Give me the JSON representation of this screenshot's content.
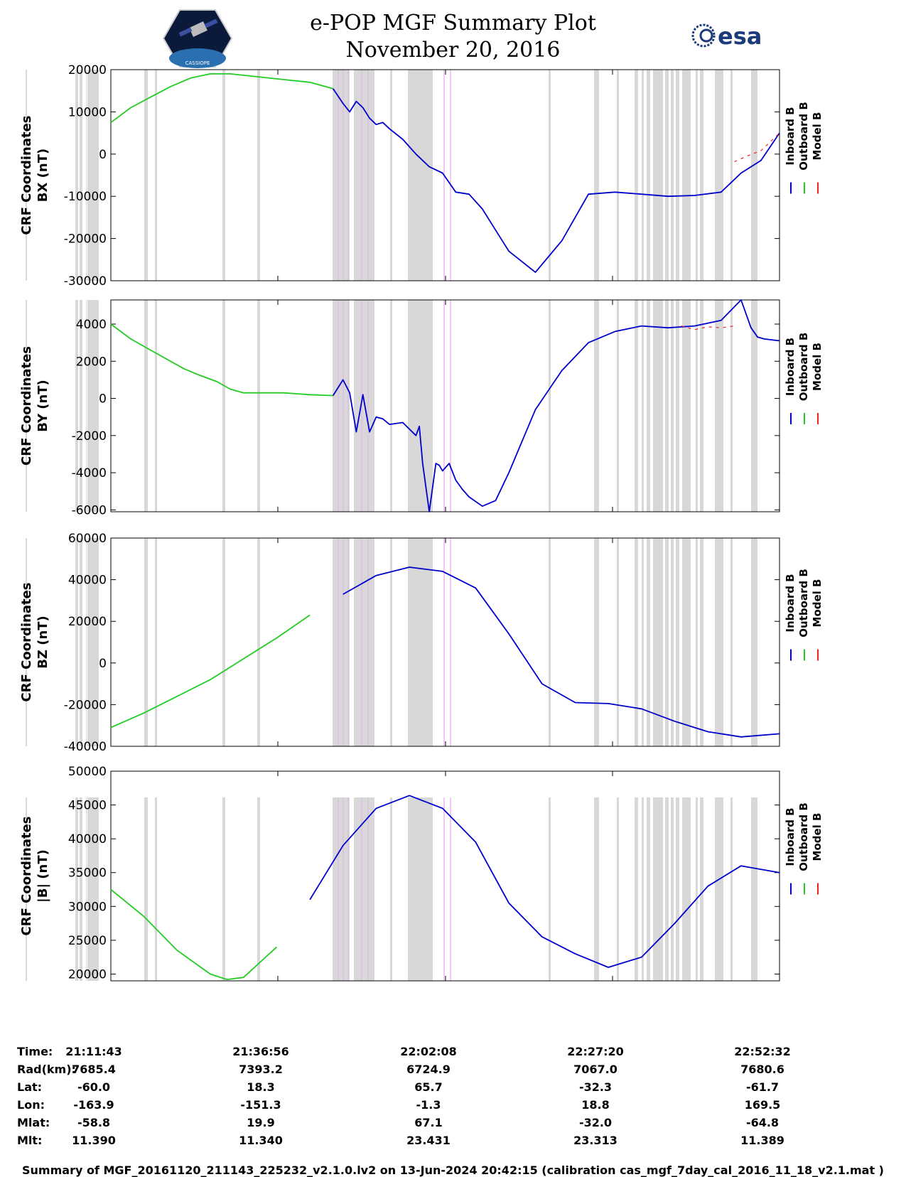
{
  "header": {
    "title": "e-POP MGF Summary Plot",
    "date": "November 20, 2016",
    "logo_left_text": "CASSIOPE",
    "logo_right_text": "esa"
  },
  "colors": {
    "inboard": "#0000cc",
    "outboard": "#22cc22",
    "model": "#ee2222",
    "shade": "#d8d8d8",
    "marker": "#e5a8f0"
  },
  "legend": [
    "Inboard B",
    "Outboard B",
    "Model B"
  ],
  "x_ticks": [
    "21:11:43",
    "21:36:56",
    "22:02:08",
    "22:27:20",
    "22:52:32"
  ],
  "chart_data": [
    {
      "type": "line",
      "ylabel_line1": "CRF Coordinates",
      "ylabel_line2": "BX (nT)",
      "ylim": [
        -30000,
        20000
      ],
      "yticks": [
        20000,
        10000,
        0,
        -10000,
        -20000,
        -30000
      ],
      "x_minutes_range": [
        0,
        100.8
      ],
      "switch_minute": 33.5,
      "series": [
        {
          "name": "Inboard B / Outboard B",
          "x": [
            0,
            3,
            6,
            9,
            12,
            15,
            18,
            21,
            24,
            27,
            30,
            33.5,
            35,
            36,
            37,
            38,
            39,
            40,
            41,
            42,
            44,
            46,
            48,
            50,
            52,
            54,
            56,
            58,
            60,
            64,
            68,
            72,
            76,
            80,
            84,
            88,
            92,
            95,
            98,
            100.8
          ],
          "y": [
            7500,
            11000,
            13500,
            16000,
            18000,
            19000,
            19000,
            18500,
            18000,
            17500,
            17000,
            15500,
            12000,
            10000,
            12500,
            11000,
            8500,
            7000,
            7500,
            6000,
            3500,
            0,
            -3000,
            -4500,
            -9000,
            -9500,
            -13000,
            -18000,
            -23000,
            -28000,
            -20500,
            -9500,
            -9000,
            -9500,
            -10000,
            -9800,
            -9000,
            -4500,
            -1500,
            5000
          ]
        },
        {
          "name": "Model B",
          "x": [
            94,
            96,
            98,
            100.8
          ],
          "y": [
            -1800,
            -400,
            800,
            5000
          ]
        }
      ]
    },
    {
      "type": "line",
      "ylabel_line1": "CRF Coordinates",
      "ylabel_line2": "BY (nT)",
      "ylim": [
        -6100,
        5300
      ],
      "yticks": [
        4000,
        2000,
        0,
        -2000,
        -4000,
        -6000
      ],
      "x_minutes_range": [
        0,
        100.8
      ],
      "switch_minute": 33.5,
      "series": [
        {
          "name": "Inboard B / Outboard B",
          "x": [
            0,
            3,
            6,
            9,
            11,
            13,
            16,
            18,
            20,
            22,
            24,
            26,
            28,
            30,
            33.5,
            35,
            36,
            37,
            38,
            39,
            40,
            41,
            42,
            44,
            46,
            46.5,
            47,
            48,
            49,
            49.5,
            50,
            51,
            52,
            53,
            54,
            56,
            58,
            60,
            64,
            68,
            72,
            76,
            80,
            84,
            88,
            92,
            95,
            96.5,
            97.5,
            98.5,
            100.8
          ],
          "y": [
            4000,
            3200,
            2600,
            2000,
            1600,
            1300,
            900,
            500,
            300,
            300,
            300,
            300,
            250,
            200,
            150,
            1000,
            300,
            -1800,
            200,
            -1800,
            -1000,
            -1100,
            -1400,
            -1300,
            -2000,
            -1500,
            -3500,
            -6100,
            -3500,
            -3600,
            -3900,
            -3500,
            -4400,
            -4900,
            -5300,
            -5800,
            -5500,
            -4000,
            -600,
            1500,
            3000,
            3600,
            3900,
            3800,
            3900,
            4200,
            5300,
            3800,
            3300,
            3200,
            3100
          ]
        },
        {
          "name": "Model B",
          "x": [
            86,
            88,
            90,
            92,
            94
          ],
          "y": [
            3900,
            3700,
            3850,
            3800,
            3900
          ]
        }
      ]
    },
    {
      "type": "line",
      "ylabel_line1": "CRF Coordinates",
      "ylabel_line2": "BZ (nT)",
      "ylim": [
        -40000,
        60000
      ],
      "yticks": [
        60000,
        40000,
        20000,
        0,
        -20000,
        -40000
      ],
      "x_minutes_range": [
        0,
        100.8
      ],
      "switch_minute": 33.5,
      "series": [
        {
          "name": "Inboard B / Outboard B",
          "x": [
            0,
            5,
            10,
            15,
            20,
            25,
            30,
            35,
            40,
            45,
            50,
            55,
            60,
            65,
            70,
            75,
            80,
            85,
            90,
            95,
            100.8
          ],
          "y": [
            -31000,
            -24000,
            -16000,
            -8000,
            2000,
            12000,
            23000,
            33000,
            42000,
            46000,
            44000,
            36000,
            14000,
            -10000,
            -19000,
            -19500,
            -22000,
            -28000,
            -33000,
            -35500,
            -34000
          ]
        }
      ]
    },
    {
      "type": "line",
      "ylabel_line1": "CRF Coordinates",
      "ylabel_line2": "|B| (nT)",
      "ylim": [
        19000,
        50000
      ],
      "yticks": [
        50000,
        45000,
        40000,
        35000,
        30000,
        25000,
        20000
      ],
      "x_minutes_range": [
        0,
        100.8
      ],
      "switch_minute": 26,
      "series": [
        {
          "name": "Inboard B / Outboard B",
          "x": [
            0,
            5,
            10,
            15,
            17.5,
            20,
            25,
            30,
            35,
            40,
            45,
            50,
            55,
            60,
            65,
            70,
            75,
            80,
            85,
            90,
            95,
            100.8
          ],
          "y": [
            32500,
            28500,
            23500,
            20000,
            19200,
            19500,
            24000,
            31000,
            39000,
            44500,
            46400,
            44500,
            39500,
            30500,
            25500,
            23000,
            21000,
            22500,
            27500,
            33000,
            36000,
            35000
          ]
        }
      ]
    }
  ],
  "info_rows": [
    {
      "label": "Time:",
      "values": [
        "21:11:43",
        "21:36:56",
        "22:02:08",
        "22:27:20",
        "22:52:32"
      ]
    },
    {
      "label": "Rad(km):",
      "values": [
        "7685.4",
        "7393.2",
        "6724.9",
        "7067.0",
        "7680.6"
      ]
    },
    {
      "label": "Lat:",
      "values": [
        "-60.0",
        "18.3",
        "65.7",
        "-32.3",
        "-61.7"
      ]
    },
    {
      "label": "Lon:",
      "values": [
        "-163.9",
        "-151.3",
        "-1.3",
        "18.8",
        "169.5"
      ]
    },
    {
      "label": "Mlat:",
      "values": [
        "-58.8",
        "19.9",
        "67.1",
        "-32.0",
        "-64.8"
      ]
    },
    {
      "label": "Mlt:",
      "values": [
        "11.390",
        "11.340",
        "23.431",
        "23.313",
        "11.389"
      ]
    }
  ],
  "footer": "Summary of MGF_20161120_211143_225232_v2.1.0.lv2 on 13-Jun-2024 20:42:15 (calibration cas_mgf_7day_cal_2016_11_18_v2.1.mat )"
}
